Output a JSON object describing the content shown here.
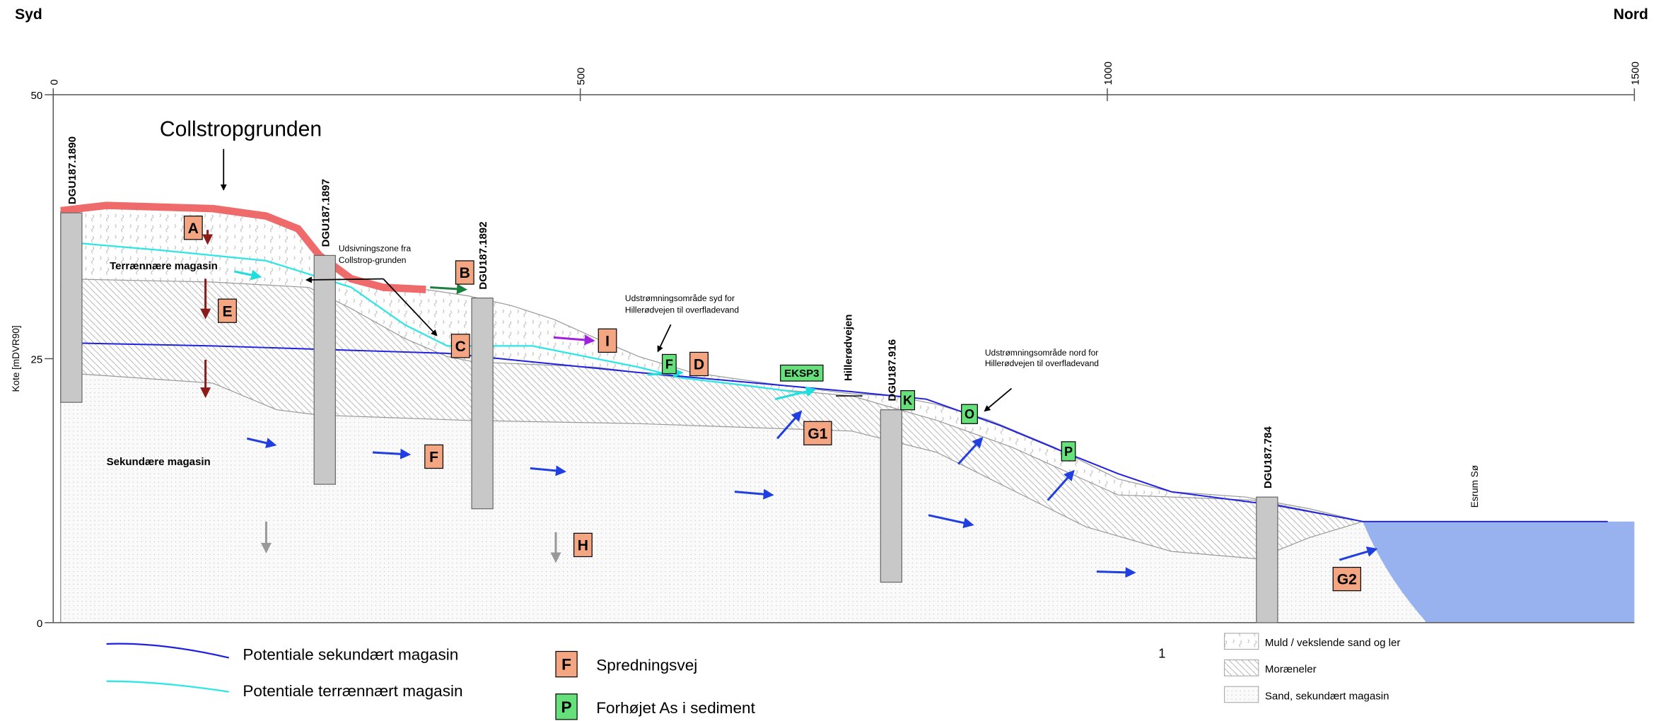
{
  "header": {
    "left": "Syd",
    "right": "Nord"
  },
  "axes": {
    "x_ticks": [
      0,
      500,
      1000,
      1500
    ],
    "y_ticks": [
      0,
      25,
      50
    ],
    "y_label": "Kote [mDVR90]"
  },
  "labels": {
    "site": "Collstropgrunden",
    "shallow": "Terrænnære magasin",
    "secondary": "Sekundære magasin",
    "seepage": [
      "Udsivningszone fra",
      "Collstrop-grunden"
    ],
    "outflow_south": [
      "Udstrømningsområde syd for",
      "Hillerødvejen til overfladevand"
    ],
    "road": "Hillerødvejen",
    "outflow_north": [
      "Udstrømningsområde nord for",
      "Hillerødvejen til overfladevand"
    ],
    "lake": "Esrum Sø"
  },
  "wells": [
    "DGU187.1890",
    "DGU187.1897",
    "DGU187.1892",
    "DGU187.916",
    "DGU187.784"
  ],
  "markers": [
    "A",
    "B",
    "C",
    "D",
    "E",
    "F",
    "G1",
    "H",
    "I",
    "G2"
  ],
  "green_markers": [
    "F",
    "EKSP3",
    "K",
    "O",
    "P"
  ],
  "legend": {
    "lines": [
      "Potentiale sekundært magasin",
      "Potentiale terrænnært magasin"
    ],
    "boxes": [
      {
        "key": "F",
        "text": "Spredningsvej"
      },
      {
        "key": "P",
        "text": "Forhøjet As i sediment"
      }
    ],
    "fills": [
      "Muld / vekslende sand og ler",
      "Moræneler",
      "Sand, sekundært magasin"
    ]
  },
  "page_number": "1"
}
